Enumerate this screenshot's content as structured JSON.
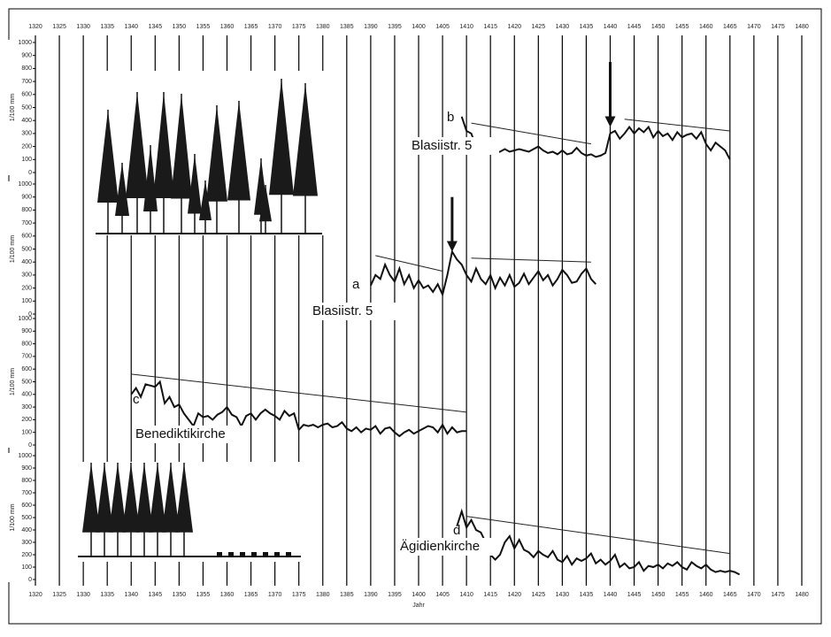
{
  "chart_data": [
    {
      "type": "line",
      "letter": "b",
      "site": "Blasiistr. 5",
      "ylabel": "1/100 mm",
      "xlim": [
        1320,
        1480
      ],
      "xticks": [
        1320,
        1325,
        1330,
        1335,
        1340,
        1345,
        1350,
        1355,
        1360,
        1365,
        1370,
        1375,
        1380,
        1385,
        1390,
        1395,
        1400,
        1405,
        1410,
        1415,
        1420,
        1425,
        1430,
        1435,
        1440,
        1445,
        1450,
        1455,
        1460,
        1465,
        1470,
        1475,
        1480
      ],
      "ylim": [
        0,
        1000
      ],
      "yticks": [
        0,
        100,
        200,
        300,
        400,
        500,
        600,
        700,
        800,
        900,
        1000
      ],
      "x": [
        1409,
        1410,
        1411,
        1412,
        1413,
        1414,
        1415,
        1416,
        1417,
        1418,
        1419,
        1420,
        1421,
        1422,
        1423,
        1424,
        1425,
        1426,
        1427,
        1428,
        1429,
        1430,
        1431,
        1432,
        1433,
        1434,
        1435,
        1436,
        1437,
        1438,
        1439,
        1440,
        1441,
        1442,
        1443,
        1444,
        1445,
        1446,
        1447,
        1448,
        1449,
        1450,
        1451,
        1452,
        1453,
        1454,
        1455,
        1456,
        1457,
        1458,
        1459,
        1460,
        1461,
        1462,
        1463,
        1464,
        1465
      ],
      "values": [
        430,
        320,
        300,
        200,
        220,
        180,
        240,
        150,
        160,
        180,
        160,
        170,
        180,
        170,
        160,
        180,
        200,
        170,
        150,
        160,
        140,
        170,
        140,
        150,
        190,
        150,
        130,
        140,
        120,
        130,
        150,
        300,
        320,
        260,
        300,
        350,
        300,
        340,
        310,
        350,
        270,
        320,
        280,
        300,
        250,
        310,
        270,
        290,
        300,
        260,
        310,
        220,
        170,
        230,
        200,
        170,
        100
      ],
      "trend_lines": [
        {
          "x": [
            1411,
            1436
          ],
          "values": [
            380,
            220
          ]
        },
        {
          "x": [
            1443,
            1465
          ],
          "values": [
            410,
            320
          ]
        }
      ],
      "arrows": [
        {
          "x": 1440,
          "values": [
            850,
            350
          ]
        }
      ]
    },
    {
      "type": "line",
      "letter": "a",
      "site": "Blasiistr. 5",
      "ylabel": "1/100 mm",
      "xlim": [
        1320,
        1480
      ],
      "ylim": [
        0,
        1000
      ],
      "yticks": [
        0,
        100,
        200,
        300,
        400,
        500,
        600,
        700,
        800,
        900,
        1000
      ],
      "x": [
        1390,
        1391,
        1392,
        1393,
        1394,
        1395,
        1396,
        1397,
        1398,
        1399,
        1400,
        1401,
        1402,
        1403,
        1404,
        1405,
        1406,
        1407,
        1408,
        1409,
        1410,
        1411,
        1412,
        1413,
        1414,
        1415,
        1416,
        1417,
        1418,
        1419,
        1420,
        1421,
        1422,
        1423,
        1424,
        1425,
        1426,
        1427,
        1428,
        1429,
        1430,
        1431,
        1432,
        1433,
        1434,
        1435,
        1436,
        1437
      ],
      "values": [
        220,
        300,
        270,
        380,
        300,
        250,
        350,
        230,
        300,
        200,
        260,
        200,
        220,
        170,
        230,
        150,
        300,
        480,
        420,
        380,
        300,
        250,
        350,
        270,
        230,
        300,
        200,
        280,
        220,
        300,
        210,
        240,
        310,
        230,
        280,
        330,
        260,
        300,
        220,
        270,
        340,
        300,
        240,
        250,
        310,
        350,
        270,
        230
      ],
      "trend_lines": [
        {
          "x": [
            1391,
            1405
          ],
          "values": [
            450,
            330
          ]
        },
        {
          "x": [
            1411,
            1436
          ],
          "values": [
            430,
            400
          ]
        }
      ],
      "arrows": [
        {
          "x": 1407,
          "values": [
            900,
            480
          ]
        }
      ]
    },
    {
      "type": "line",
      "letter": "c",
      "site": "Benediktikirche",
      "ylabel": "1/100 mm",
      "xlim": [
        1320,
        1480
      ],
      "ylim": [
        0,
        1000
      ],
      "yticks": [
        0,
        100,
        200,
        300,
        400,
        500,
        600,
        700,
        800,
        900,
        1000
      ],
      "x": [
        1340,
        1341,
        1342,
        1343,
        1344,
        1345,
        1346,
        1347,
        1348,
        1349,
        1350,
        1351,
        1352,
        1353,
        1354,
        1355,
        1356,
        1357,
        1358,
        1359,
        1360,
        1361,
        1362,
        1363,
        1364,
        1365,
        1366,
        1367,
        1368,
        1369,
        1370,
        1371,
        1372,
        1373,
        1374,
        1375,
        1376,
        1377,
        1378,
        1379,
        1380,
        1381,
        1382,
        1383,
        1384,
        1385,
        1386,
        1387,
        1388,
        1389,
        1390,
        1391,
        1392,
        1393,
        1394,
        1395,
        1396,
        1397,
        1398,
        1399,
        1400,
        1401,
        1402,
        1403,
        1404,
        1405,
        1406,
        1407,
        1408,
        1409,
        1410
      ],
      "values": [
        400,
        450,
        380,
        480,
        470,
        460,
        500,
        330,
        380,
        300,
        320,
        250,
        200,
        150,
        250,
        220,
        230,
        200,
        240,
        260,
        300,
        240,
        220,
        150,
        230,
        250,
        200,
        250,
        280,
        250,
        230,
        200,
        270,
        230,
        250,
        120,
        160,
        150,
        160,
        140,
        160,
        170,
        140,
        150,
        180,
        130,
        110,
        140,
        100,
        130,
        120,
        150,
        90,
        130,
        140,
        100,
        70,
        100,
        120,
        90,
        110,
        130,
        150,
        140,
        100,
        160,
        90,
        140,
        100,
        110,
        110
      ],
      "trend_lines": [
        {
          "x": [
            1340,
            1410
          ],
          "values": [
            560,
            260
          ]
        }
      ]
    },
    {
      "type": "line",
      "letter": "d",
      "site": "Ägidienkirche",
      "ylabel": "1/100 mm",
      "xlabel": "Jahr",
      "xlim": [
        1320,
        1480
      ],
      "xticks": [
        1320,
        1325,
        1330,
        1335,
        1340,
        1345,
        1350,
        1355,
        1360,
        1365,
        1370,
        1375,
        1380,
        1385,
        1390,
        1395,
        1400,
        1405,
        1410,
        1415,
        1420,
        1425,
        1430,
        1435,
        1440,
        1445,
        1450,
        1455,
        1460,
        1465,
        1470,
        1475,
        1480
      ],
      "ylim": [
        0,
        1000
      ],
      "yticks": [
        0,
        100,
        200,
        300,
        400,
        500,
        600,
        700,
        800,
        900,
        1000
      ],
      "x": [
        1408,
        1409,
        1410,
        1411,
        1412,
        1413,
        1414,
        1415,
        1416,
        1417,
        1418,
        1419,
        1420,
        1421,
        1422,
        1423,
        1424,
        1425,
        1426,
        1427,
        1428,
        1429,
        1430,
        1431,
        1432,
        1433,
        1434,
        1435,
        1436,
        1437,
        1438,
        1439,
        1440,
        1441,
        1442,
        1443,
        1444,
        1445,
        1446,
        1447,
        1448,
        1449,
        1450,
        1451,
        1452,
        1453,
        1454,
        1455,
        1456,
        1457,
        1458,
        1459,
        1460,
        1461,
        1462,
        1463,
        1464,
        1465,
        1466,
        1467
      ],
      "values": [
        430,
        550,
        420,
        480,
        400,
        380,
        300,
        200,
        160,
        200,
        300,
        350,
        250,
        320,
        240,
        220,
        180,
        230,
        200,
        180,
        230,
        160,
        140,
        190,
        120,
        170,
        150,
        170,
        210,
        130,
        160,
        120,
        150,
        200,
        100,
        130,
        90,
        100,
        140,
        70,
        110,
        100,
        120,
        90,
        130,
        110,
        140,
        100,
        80,
        140,
        110,
        90,
        120,
        80,
        60,
        70,
        60,
        70,
        60,
        40
      ],
      "trend_lines": [
        {
          "x": [
            1410,
            1465
          ],
          "values": [
            510,
            210
          ]
        }
      ]
    }
  ]
}
